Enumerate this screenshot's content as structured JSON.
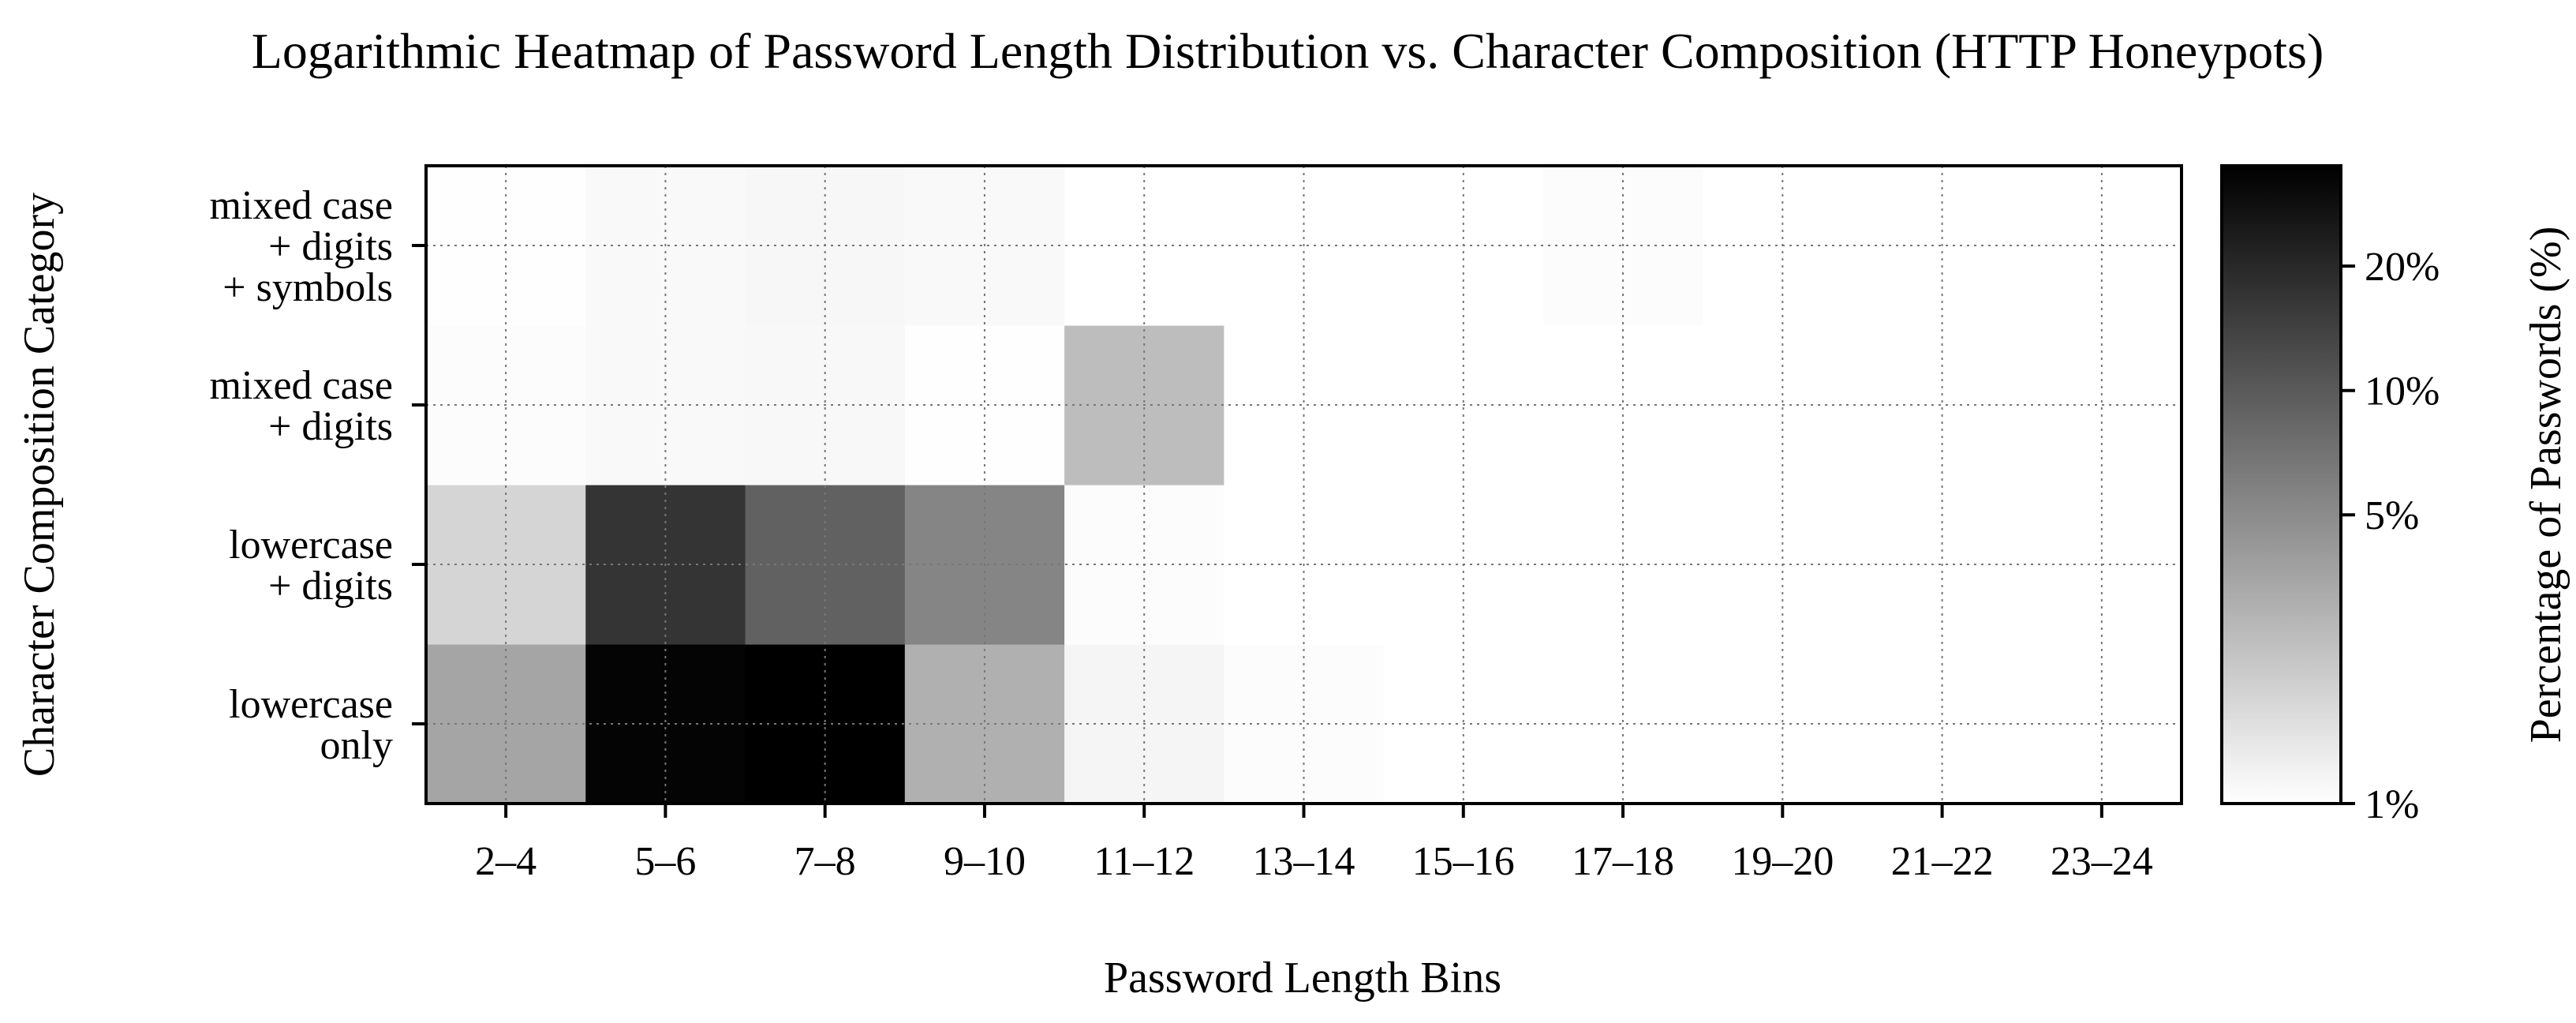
{
  "chart_data": {
    "type": "heatmap",
    "title": "Logarithmic Heatmap of Password Length Distribution vs. Character Composition (HTTP Honeypots)",
    "xlabel": "Password Length Bins",
    "ylabel": "Character Composition Category",
    "x_categories": [
      "2–4",
      "5–6",
      "7–8",
      "9–10",
      "11–12",
      "13–14",
      "15–16",
      "17–18",
      "19–20",
      "21–22",
      "23–24"
    ],
    "y_categories": [
      [
        "lowercase",
        "only"
      ],
      [
        "lowercase",
        "+ digits"
      ],
      [
        "mixed case",
        "+ digits"
      ],
      [
        "mixed case",
        "+ digits",
        "+ symbols"
      ]
    ],
    "y_order": "bottom-to-top",
    "values": [
      [
        3.5,
        33.0,
        35.0,
        3.0,
        1.15,
        1.05,
        1.0,
        1.0,
        1.0,
        1.0,
        1.0
      ],
      [
        1.8,
        17.0,
        9.0,
        5.5,
        1.05,
        1.0,
        1.0,
        1.0,
        1.0,
        1.0,
        1.0
      ],
      [
        1.05,
        1.08,
        1.1,
        1.02,
        2.5,
        1.0,
        1.0,
        1.0,
        1.0,
        1.0,
        1.0
      ],
      [
        1.02,
        1.08,
        1.12,
        1.08,
        1.0,
        1.0,
        1.0,
        1.05,
        1.0,
        1.0,
        1.0
      ]
    ],
    "value_unit": "%",
    "color_scale": "log",
    "colormap": "Greys",
    "vmin": 1,
    "vmax": 35,
    "colorbar": {
      "label": "Percentage of Passwords (%)",
      "ticks": [
        1,
        5,
        10,
        20
      ],
      "tick_labels": [
        "1%",
        "5%",
        "10%",
        "20%"
      ]
    },
    "grid": true,
    "grid_style": "dotted"
  }
}
